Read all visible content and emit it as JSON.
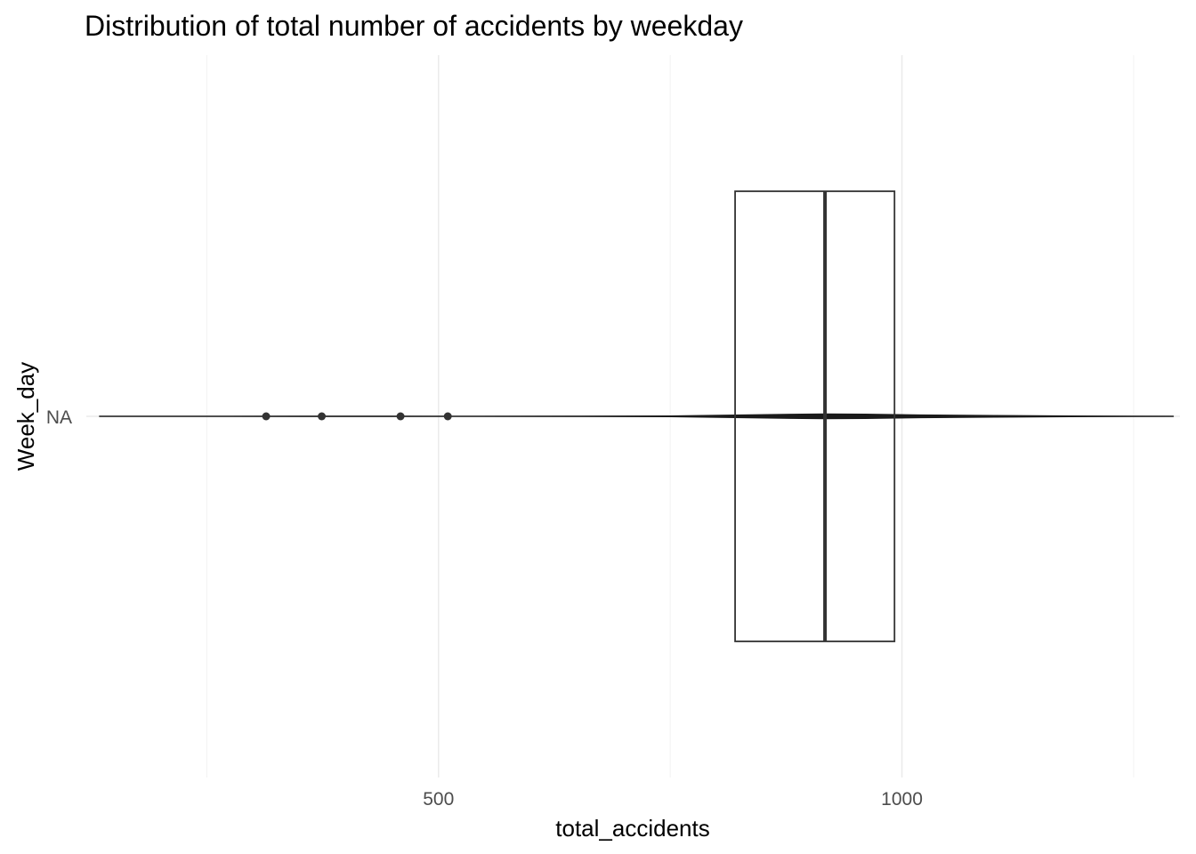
{
  "chart_data": {
    "type": "boxplot",
    "title": "Distribution of total number of accidents by weekday",
    "xlabel": "total_accidents",
    "ylabel": "Week_day",
    "x_ticks": [
      500,
      1000
    ],
    "x_minor_ticks": [
      250,
      750,
      1250
    ],
    "xlim": [
      120,
      1300
    ],
    "categories": [
      "NA"
    ],
    "box": {
      "category": "NA",
      "q1": 820,
      "median": 917,
      "q3": 992,
      "whisker_low": 134,
      "whisker_high": 1293,
      "outliers": [
        314,
        374,
        459,
        510
      ]
    },
    "density_outline": [
      [
        134,
        0.002
      ],
      [
        250,
        0.006
      ],
      [
        350,
        0.01
      ],
      [
        450,
        0.01
      ],
      [
        540,
        0.004
      ],
      [
        650,
        0.008
      ],
      [
        750,
        0.03
      ],
      [
        820,
        0.07
      ],
      [
        880,
        0.11
      ],
      [
        917,
        0.13
      ],
      [
        960,
        0.12
      ],
      [
        1020,
        0.08
      ],
      [
        1100,
        0.05
      ],
      [
        1200,
        0.02
      ],
      [
        1293,
        0.004
      ]
    ],
    "grid": true,
    "legend": "none"
  }
}
